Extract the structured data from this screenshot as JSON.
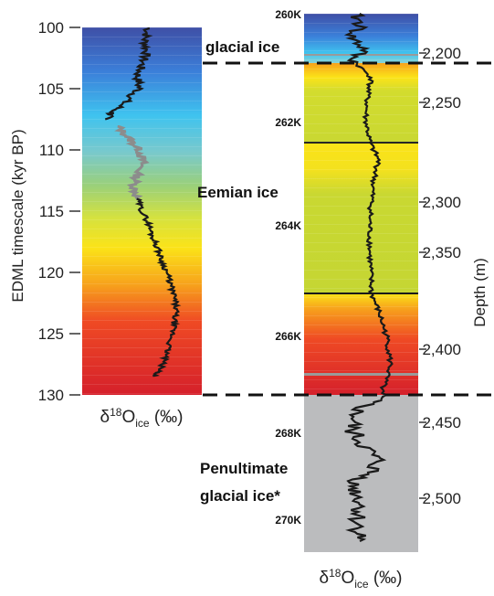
{
  "chart_data": [
    {
      "type": "line",
      "ylabel": "EDML timescale (kyr BP)",
      "ylabel_unit": "BP",
      "xlabel_main": "δ",
      "xlabel_sup": "18",
      "xlabel_o": "O",
      "xlabel_sub": "ice",
      "xlabel_unit": " (‰)",
      "ylim": [
        100,
        130
      ],
      "y_ticks": [
        100,
        105,
        110,
        115,
        120,
        125,
        130
      ],
      "series": [
        {
          "color": "#1a1a1a",
          "y": [
            100.0,
            101.0,
            102.0,
            103.0,
            104.0,
            105.0,
            106.0,
            107.0,
            107.5
          ],
          "x": [
            0.62,
            0.58,
            0.6,
            0.55,
            0.5,
            0.52,
            0.38,
            0.22,
            0.15
          ]
        },
        {
          "color": "#8c8c8c",
          "y": [
            108.0,
            109.0,
            110.0,
            111.0,
            112.0,
            113.0,
            114.0
          ],
          "x": [
            0.28,
            0.4,
            0.52,
            0.56,
            0.5,
            0.46,
            0.5
          ]
        },
        {
          "color": "#1a1a1a",
          "y": [
            114.0,
            115.0,
            116.0,
            117.0,
            118.0,
            119.0,
            120.0,
            121.0,
            122.0,
            123.0,
            124.0,
            125.0,
            126.0,
            127.0,
            128.0,
            128.5
          ],
          "x": [
            0.5,
            0.55,
            0.62,
            0.66,
            0.72,
            0.76,
            0.82,
            0.86,
            0.9,
            0.92,
            0.9,
            0.88,
            0.84,
            0.8,
            0.74,
            0.68
          ]
        }
      ]
    },
    {
      "type": "line",
      "ylabel": "Depth (m)",
      "xlabel_main": "δ",
      "xlabel_sup": "18",
      "xlabel_o": "O",
      "xlabel_sub": "ice",
      "xlabel_unit": " (‰)",
      "depth_ticks": [
        "2,200",
        "2,250",
        "2,300",
        "2,350",
        "2,400",
        "2,450",
        "2,500"
      ],
      "age_labels": [
        "260K",
        "262K",
        "264K",
        "266K",
        "268K",
        "270K"
      ],
      "ice_labels": {
        "glacial": "glacial ice",
        "eemian": "Eemian ice",
        "penultimate_1": "Penultimate",
        "penultimate_2": "glacial ice*"
      },
      "series": [
        {
          "color": "#1a1a1a",
          "name": "",
          "values": []
        }
      ]
    }
  ]
}
